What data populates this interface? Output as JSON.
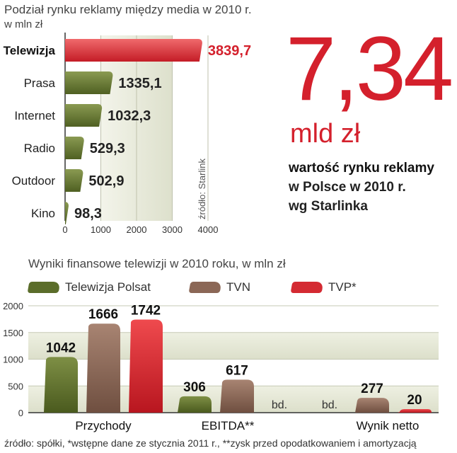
{
  "top_chart": {
    "title": "Podział rynku reklamy między media w 2010 r.",
    "subtitle": "w mln zł",
    "source_label": "źródło: Starlink"
  },
  "headline": {
    "value": "7,34",
    "unit": "mld zł",
    "desc_bold": "wartość rynku reklamy",
    "desc_lines": [
      "w Polsce w 2010 r.",
      "wg Starlinka"
    ]
  },
  "bottom_chart": {
    "title": "Wyniki finansowe telewizji w 2010 roku, w mln zł",
    "footnote": "źródło: spółki, *wstępne dane ze stycznia 2011 r., **zysk przed opodatkowaniem i amortyzacją"
  },
  "colors": {
    "highlight": "#d4202c",
    "bar_green": "#5b6d2a",
    "bar_brown": "#8b6756",
    "bar_red": "#d42a32",
    "band": "#e6e8da"
  },
  "chart_data": [
    {
      "type": "bar",
      "orientation": "horizontal",
      "title": "Podział rynku reklamy między media w 2010 r.",
      "subtitle": "w mln zł",
      "categories": [
        "Telewizja",
        "Prasa",
        "Internet",
        "Radio",
        "Outdoor",
        "Kino"
      ],
      "values": [
        3839.7,
        1335.1,
        1032.3,
        529.3,
        502.9,
        98.3
      ],
      "value_labels": [
        "3839,7",
        "1335,1",
        "1032,3",
        "529,3",
        "502,9",
        "98,3"
      ],
      "highlight_index": 0,
      "xlim": [
        0,
        4000
      ],
      "xticks": [
        0,
        1000,
        2000,
        3000,
        4000
      ],
      "annotation": "źródło: Starlink"
    },
    {
      "type": "bar",
      "title": "Wyniki finansowe telewizji w 2010 roku, w mln zł",
      "categories": [
        "Przychody",
        "EBITDA**",
        "Wynik netto"
      ],
      "series": [
        {
          "name": "Telewizja Polsat",
          "values": [
            1042,
            306,
            null
          ],
          "labels": [
            "1042",
            "306",
            "bd."
          ]
        },
        {
          "name": "TVN",
          "values": [
            1666,
            617,
            277
          ],
          "labels": [
            "1666",
            "617",
            "277"
          ]
        },
        {
          "name": "TVP*",
          "values": [
            1742,
            null,
            20
          ],
          "labels": [
            "1742",
            "bd.",
            "20"
          ]
        }
      ],
      "ylim": [
        0,
        2000
      ],
      "yticks": [
        0,
        500,
        1000,
        1500,
        2000
      ],
      "legend": "top"
    }
  ]
}
